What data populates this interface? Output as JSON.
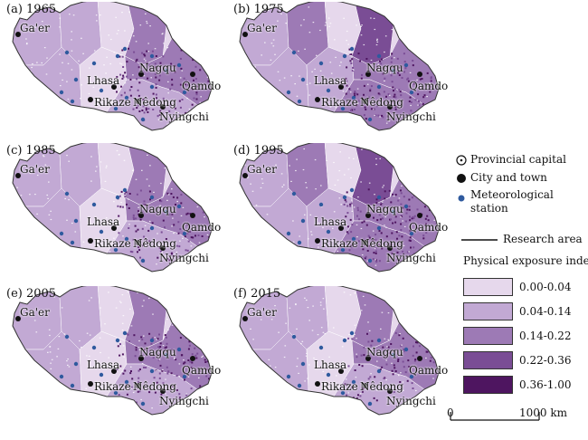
{
  "panels": [
    {
      "label": "(a) 1965"
    },
    {
      "label": "(b) 1975"
    },
    {
      "label": "(c) 1985"
    },
    {
      "label": "(d) 1995"
    },
    {
      "label": "(e) 2005"
    },
    {
      "label": "(f) 2015"
    }
  ],
  "cities": {
    "gaer": "Ga'er",
    "lhasa": "Lhasa",
    "nagqu": "Nagqu",
    "qamdo": "Qamdo",
    "rikaze": "Rikaze",
    "nedong": "Nêdong",
    "nyingchi": "Nyingchi"
  },
  "legend": {
    "provincial_capital": "Provincial capital",
    "city_and_town": "City and town",
    "meteorological_station": "Meteorological station",
    "research_area": "Research area",
    "index_title": "Physical exposure index",
    "classes": [
      {
        "label": "0.00-0.04",
        "color": "#e6d8ec"
      },
      {
        "label": "0.04-0.14",
        "color": "#c2a9d4"
      },
      {
        "label": "0.14-0.22",
        "color": "#9d7ab5"
      },
      {
        "label": "0.22-0.36",
        "color": "#7a4d95"
      },
      {
        "label": "0.36-1.00",
        "color": "#4e1560"
      }
    ],
    "scale_start": "0",
    "scale_end": "1000 km"
  },
  "colors": {
    "station": "#2f5a9e",
    "city": "#111111",
    "outline": "#333333"
  },
  "panel_intensity": [
    0.55,
    0.62,
    0.5,
    0.7,
    0.58,
    0.38
  ]
}
